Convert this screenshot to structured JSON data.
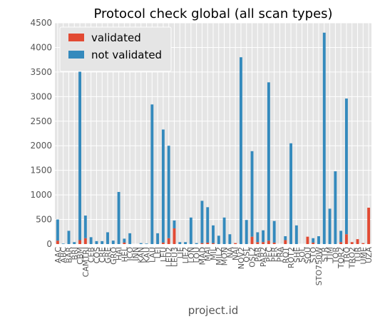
{
  "chart_data": {
    "type": "bar",
    "stacked": true,
    "title": "Protocol check global (all scan types)",
    "xlabel": "project.id",
    "ylabel": "",
    "ylim": [
      0,
      4500
    ],
    "yticks": [
      0,
      500,
      1000,
      1500,
      2000,
      2500,
      3000,
      3500,
      4000,
      4500
    ],
    "grid": true,
    "legend_position": "top-left",
    "colors": {
      "validated": "#e24a33",
      "not_validated": "#348abd",
      "plot_background": "#e5e5e5",
      "grid": "#ffffff"
    },
    "categories": [
      "AAC",
      "ABC",
      "BAR",
      "BRI",
      "CBM",
      "CAMTRI",
      "CEB",
      "COS",
      "CRE",
      "GRE",
      "GRO",
      "HAI",
      "HEL",
      "ICO",
      "INN",
      "KAN",
      "KAU",
      "LAU",
      "LEI",
      "LEU",
      "LEU2",
      "LEU3",
      "LIE",
      "LIE2",
      "LON",
      "LOU",
      "MAD",
      "MAI",
      "MIL",
      "MIL2",
      "MON",
      "NA",
      "NAI",
      "NOV2",
      "OSL",
      "OSL2",
      "PAR",
      "PAR2",
      "PEC",
      "PER",
      "PRA",
      "ROT",
      "ROT2",
      "SHE",
      "SOL",
      "SOU",
      "STO",
      "STO750W",
      "STR",
      "TIM",
      "TOR",
      "TOR2",
      "TRO",
      "TRO2",
      "TUR",
      "UME",
      "UZA"
    ],
    "series": [
      {
        "name": "validated",
        "values": [
          70,
          0,
          0,
          0,
          80,
          120,
          0,
          0,
          0,
          0,
          0,
          0,
          30,
          0,
          0,
          0,
          0,
          0,
          0,
          30,
          120,
          320,
          0,
          0,
          0,
          0,
          20,
          30,
          20,
          0,
          0,
          0,
          20,
          0,
          0,
          150,
          40,
          40,
          70,
          30,
          0,
          80,
          0,
          0,
          0,
          150,
          30,
          0,
          0,
          0,
          0,
          40,
          200,
          40,
          100,
          20,
          740
        ]
      },
      {
        "name": "not validated",
        "values": [
          430,
          10,
          270,
          40,
          3450,
          460,
          140,
          60,
          60,
          240,
          70,
          1060,
          80,
          220,
          0,
          20,
          10,
          2840,
          220,
          2300,
          1880,
          160,
          40,
          40,
          540,
          20,
          860,
          720,
          360,
          170,
          540,
          200,
          0,
          3800,
          490,
          1740,
          200,
          240,
          3220,
          440,
          0,
          80,
          2050,
          380,
          0,
          0,
          90,
          160,
          4300,
          720,
          1480,
          230,
          2760,
          0,
          0,
          0,
          0
        ]
      }
    ]
  }
}
